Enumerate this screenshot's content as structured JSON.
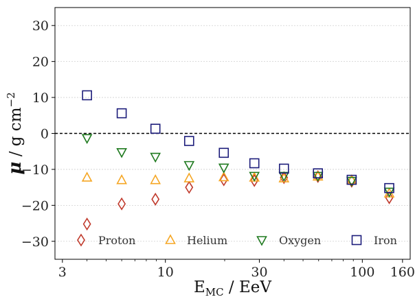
{
  "chart_data": {
    "type": "scatter",
    "xscale": "log",
    "xlim": [
      2.75,
      175
    ],
    "ylim": [
      -35,
      35
    ],
    "xticks": [
      3,
      10,
      30,
      100,
      160
    ],
    "xtick_labels": [
      "3",
      "10",
      "30",
      "100",
      "160"
    ],
    "yticks": [
      -30,
      -20,
      -10,
      0,
      10,
      20,
      30
    ],
    "ytick_labels": [
      "−30",
      "−20",
      "−10",
      "0",
      "10",
      "20",
      "30"
    ],
    "xlabel": {
      "main": "E",
      "sub": "MC",
      "rest": " / EeV"
    },
    "ylabel": {
      "symbol": "μ",
      "rest": " / g cm",
      "sup": "−2"
    },
    "grid": "horizontal",
    "reference_line": {
      "y": 0,
      "style": "dashed"
    },
    "legend_position": "bottom, single row",
    "series": [
      {
        "name": "Proton",
        "marker": "diamond",
        "color": "#c0392b",
        "x": [
          4.0,
          6.0,
          8.9,
          13.2,
          19.8,
          28.3,
          40.0,
          59.5,
          88.3,
          137.0
        ],
        "y": [
          -25.2,
          -19.6,
          -18.3,
          -15.0,
          -12.9,
          -13.1,
          -12.3,
          -12.0,
          -13.3,
          -17.9
        ]
      },
      {
        "name": "Helium",
        "marker": "triangle-up",
        "color": "#f5a623",
        "x": [
          4.0,
          6.0,
          8.9,
          13.2,
          19.8,
          28.3,
          40.0,
          59.5,
          88.3,
          137.0
        ],
        "y": [
          -12.3,
          -13.0,
          -13.0,
          -12.5,
          -12.2,
          -12.3,
          -12.5,
          -12.0,
          -13.0,
          -16.7
        ]
      },
      {
        "name": "Oxygen",
        "marker": "triangle-down",
        "color": "#1f7a1f",
        "x": [
          4.0,
          6.0,
          8.9,
          13.2,
          19.8,
          28.3,
          40.0,
          59.5,
          88.3,
          137.0
        ],
        "y": [
          -1.3,
          -5.2,
          -6.5,
          -8.8,
          -9.5,
          -11.8,
          -11.8,
          -11.8,
          -13.2,
          -16.2
        ]
      },
      {
        "name": "Iron",
        "marker": "square",
        "color": "#1c1c7a",
        "x": [
          4.0,
          6.0,
          8.9,
          13.2,
          19.8,
          28.3,
          40.0,
          59.5,
          88.3,
          137.0
        ],
        "y": [
          10.6,
          5.6,
          1.3,
          -2.1,
          -5.4,
          -8.3,
          -9.8,
          -11.1,
          -12.9,
          -15.2
        ]
      }
    ]
  }
}
